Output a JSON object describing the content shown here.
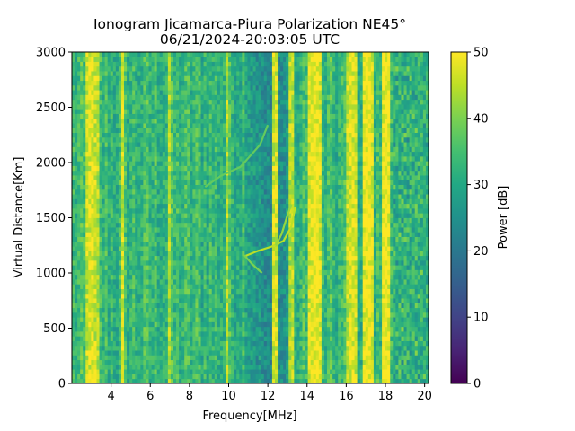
{
  "chart_data": {
    "type": "heatmap",
    "title": "Ionogram Jicamarca-Piura Polarization NE45°",
    "subtitle": "06/21/2024-20:03:05 UTC",
    "xlabel": "Frequency[MHz]",
    "ylabel": "Virtual Distance[Km]",
    "xlim": [
      2.0,
      20.2
    ],
    "ylim": [
      0,
      3000
    ],
    "x_ticks": [
      4,
      6,
      8,
      10,
      12,
      14,
      16,
      18,
      20
    ],
    "x_tick_labels": [
      "4",
      "6",
      "8",
      "10",
      "12",
      "14",
      "16",
      "18",
      "20"
    ],
    "y_ticks": [
      0,
      500,
      1000,
      1500,
      2000,
      2500,
      3000
    ],
    "y_tick_labels": [
      "0",
      "500",
      "1000",
      "1500",
      "2000",
      "2500",
      "3000"
    ],
    "colorbar": {
      "label": "Power [dB]",
      "range": [
        0,
        50
      ],
      "ticks": [
        0,
        10,
        20,
        30,
        40,
        50
      ],
      "tick_labels": [
        "0",
        "10",
        "20",
        "30",
        "40",
        "50"
      ],
      "colormap": "viridis"
    },
    "background_power_db": 33,
    "low_power_region": {
      "freq_range_mhz": [
        11.0,
        13.5
      ],
      "power_db": 22
    },
    "high_power_bands_mhz": [
      {
        "freq": 3.0,
        "width": 0.35,
        "power_db": 48
      },
      {
        "freq": 4.6,
        "width": 0.12,
        "power_db": 46
      },
      {
        "freq": 7.0,
        "width": 0.1,
        "power_db": 44
      },
      {
        "freq": 9.9,
        "width": 0.1,
        "power_db": 44
      },
      {
        "freq": 12.4,
        "width": 0.15,
        "power_db": 47
      },
      {
        "freq": 13.2,
        "width": 0.1,
        "power_db": 45
      },
      {
        "freq": 14.4,
        "width": 0.35,
        "power_db": 50
      },
      {
        "freq": 16.3,
        "width": 0.25,
        "power_db": 48
      },
      {
        "freq": 17.1,
        "width": 0.25,
        "power_db": 50
      },
      {
        "freq": 18.0,
        "width": 0.2,
        "power_db": 50
      }
    ],
    "echo_traces": [
      {
        "name_hidden": true,
        "points": [
          [
            10.8,
            1150
          ],
          [
            11.5,
            1200
          ],
          [
            12.2,
            1240
          ],
          [
            12.8,
            1290
          ],
          [
            13.2,
            1420
          ],
          [
            13.4,
            1600
          ]
        ],
        "power_db": 45
      },
      {
        "name_hidden": true,
        "points": [
          [
            12.4,
            1250
          ],
          [
            12.7,
            1350
          ],
          [
            13.0,
            1520
          ],
          [
            13.2,
            1620
          ]
        ],
        "power_db": 42
      },
      {
        "name_hidden": true,
        "points": [
          [
            10.8,
            1160
          ],
          [
            11.2,
            1080
          ],
          [
            11.7,
            1000
          ]
        ],
        "power_db": 40
      },
      {
        "name_hidden": true,
        "points": [
          [
            8.8,
            1780
          ],
          [
            9.6,
            1880
          ],
          [
            10.6,
            1960
          ],
          [
            11.6,
            2160
          ],
          [
            12.0,
            2340
          ]
        ],
        "power_db": 38
      }
    ]
  }
}
